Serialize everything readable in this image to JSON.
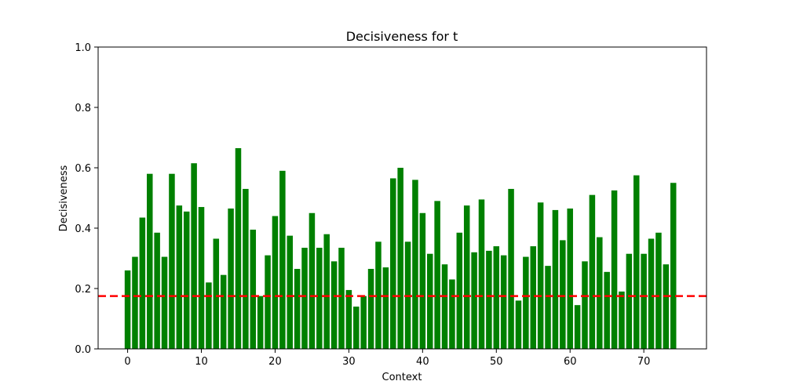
{
  "chart_data": {
    "type": "bar",
    "title": "Decisiveness for t",
    "xlabel": "Context",
    "ylabel": "Decisiveness",
    "xlim": [
      -4,
      78.5
    ],
    "ylim": [
      0,
      1.0
    ],
    "x_ticks": [
      0,
      10,
      20,
      30,
      40,
      50,
      60,
      70
    ],
    "y_ticks": [
      0.0,
      0.2,
      0.4,
      0.6,
      0.8,
      1.0
    ],
    "y_tick_labels": [
      "0.0",
      "0.2",
      "0.4",
      "0.6",
      "0.8",
      "1.0"
    ],
    "grid": false,
    "bar_color": "#008000",
    "threshold": {
      "value": 0.175,
      "color": "#ff0000",
      "style": "dashed"
    },
    "categories": [
      0,
      1,
      2,
      3,
      4,
      5,
      6,
      7,
      8,
      9,
      10,
      11,
      12,
      13,
      14,
      15,
      16,
      17,
      18,
      19,
      20,
      21,
      22,
      23,
      24,
      25,
      26,
      27,
      28,
      29,
      30,
      31,
      32,
      33,
      34,
      35,
      36,
      37,
      38,
      39,
      40,
      41,
      42,
      43,
      44,
      45,
      46,
      47,
      48,
      49,
      50,
      51,
      52,
      53,
      54,
      55,
      56,
      57,
      58,
      59,
      60,
      61,
      62,
      63,
      64,
      65,
      66,
      67,
      68,
      69,
      70,
      71,
      72,
      73,
      74
    ],
    "values": [
      0.26,
      0.305,
      0.435,
      0.58,
      0.385,
      0.305,
      0.58,
      0.475,
      0.455,
      0.615,
      0.47,
      0.22,
      0.365,
      0.245,
      0.465,
      0.665,
      0.53,
      0.395,
      0.175,
      0.31,
      0.44,
      0.59,
      0.375,
      0.265,
      0.335,
      0.45,
      0.335,
      0.38,
      0.29,
      0.335,
      0.195,
      0.14,
      0.175,
      0.265,
      0.355,
      0.27,
      0.565,
      0.6,
      0.355,
      0.56,
      0.45,
      0.315,
      0.49,
      0.28,
      0.23,
      0.385,
      0.475,
      0.32,
      0.495,
      0.325,
      0.34,
      0.31,
      0.53,
      0.16,
      0.305,
      0.34,
      0.485,
      0.275,
      0.46,
      0.36,
      0.465,
      0.145,
      0.29,
      0.51,
      0.37,
      0.255,
      0.525,
      0.19,
      0.315,
      0.575,
      0.315,
      0.365,
      0.385,
      0.28,
      0.55
    ]
  }
}
